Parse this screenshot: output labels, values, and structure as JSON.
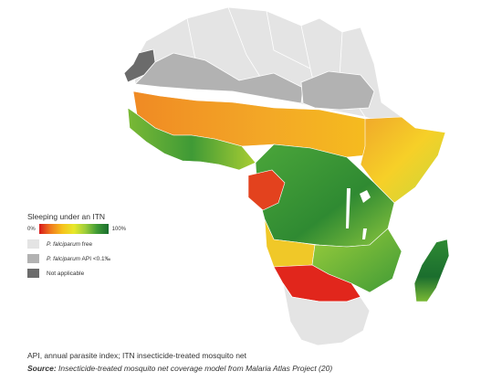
{
  "legend": {
    "title": "Sleeping under an ITN",
    "ramp_min": "0%",
    "ramp_max": "100%",
    "items": [
      {
        "color": "#e4e4e4",
        "label_species": "P. falciparum",
        "label_rest": " free"
      },
      {
        "color": "#b2b2b2",
        "label_species": "P. falciparum",
        "label_rest": " API <0.1‰"
      },
      {
        "color": "#6b6b6b",
        "label_species": "",
        "label_rest": "Not applicable"
      }
    ]
  },
  "caption": "API, annual parasite index; ITN insecticide-treated mosquito net",
  "source": {
    "prefix": "Source:",
    "text": " Insecticide-treated mosquito net coverage model from Malaria Atlas Project (20)"
  },
  "colors": {
    "free": "#e4e4e4",
    "low_api": "#b2b2b2",
    "not_applicable": "#6b6b6b",
    "ocean": "#ffffff",
    "border": "#ffffff"
  }
}
